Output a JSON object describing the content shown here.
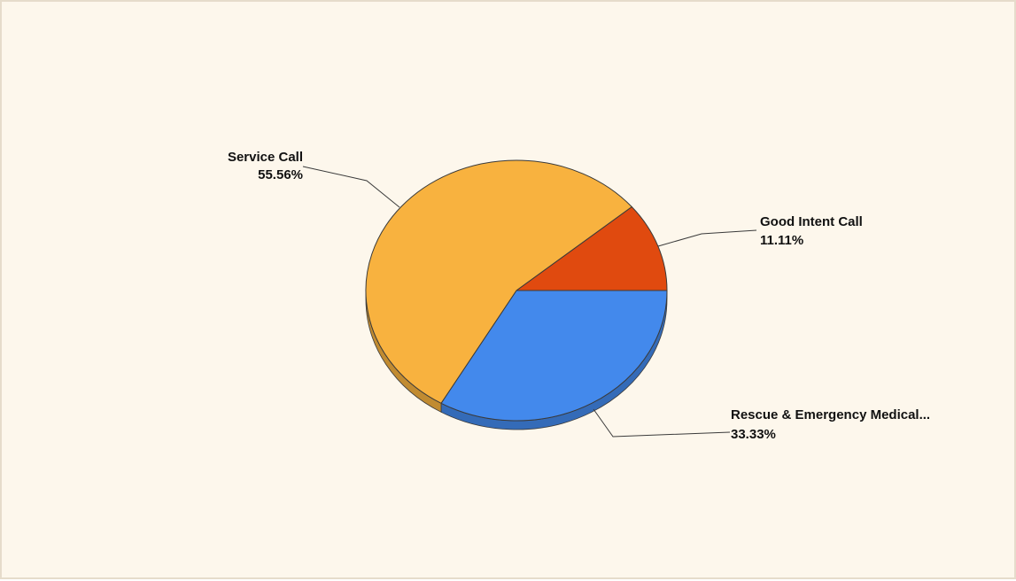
{
  "chart_data": {
    "type": "pie",
    "title": "",
    "slices": [
      {
        "name": "Good Intent Call",
        "value": 11.11,
        "label": "11.11%",
        "color": "#e04a0f"
      },
      {
        "name": "Rescue & Emergency Medical...",
        "value": 33.33,
        "label": "33.33%",
        "color": "#4389ec"
      },
      {
        "name": "Service Call",
        "value": 55.56,
        "label": "55.56%",
        "color": "#f8b23f"
      }
    ],
    "legend": "none",
    "style": "3d-tilted"
  }
}
